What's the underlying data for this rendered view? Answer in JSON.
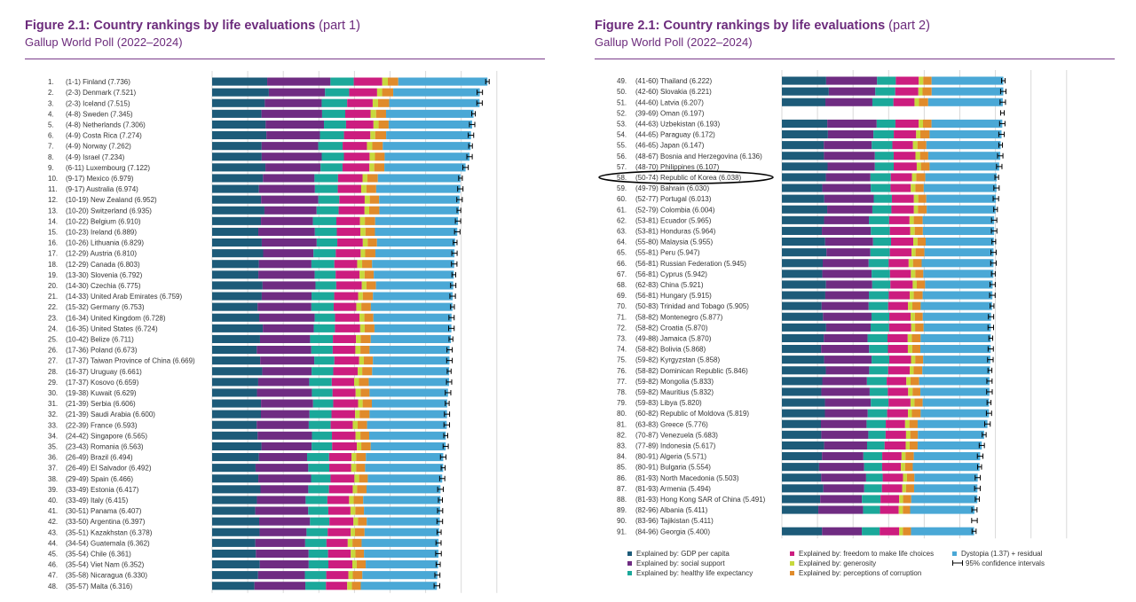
{
  "titles": {
    "left": {
      "figure": "Figure 2.1: Country rankings by life evaluations",
      "part": "(part 1)",
      "subtitle": "Gallup World Poll (2022–2024)"
    },
    "right": {
      "figure": "Figure 2.1: Country rankings by life evaluations",
      "part": "(part 2)",
      "subtitle": "Gallup World Poll (2022–2024)"
    }
  },
  "colors": {
    "gdp": "#1d5b79",
    "social": "#6f2c82",
    "health": "#1ba89a",
    "freedom": "#cc1d7f",
    "generosity": "#c7d93d",
    "corruption": "#e08b2b",
    "dystopia": "#4aa8d6",
    "ci": "#000000",
    "grid": "#d9d9d9"
  },
  "legend": {
    "gdp": "Explained by: GDP per capita",
    "social": "Explained by: social support",
    "health": "Explained by: healthy life expectancy",
    "freedom": "Explained by: freedom to make life choices",
    "generosity": "Explained by: generosity",
    "corruption": "Explained by: perceptions of corruption",
    "dystopia": "Dystopia (1.37) + residual",
    "ci": "95% confidence intervals"
  },
  "chart_data": [
    {
      "type": "bar",
      "stacked": true,
      "orientation": "horizontal",
      "title": "Figure 2.1: Country rankings by life evaluations (part 1)",
      "subtitle": "Gallup World Poll (2022–2024)",
      "series": [
        "GDP per capita",
        "Social support",
        "Healthy life expectancy",
        "Freedom to make life choices",
        "Generosity",
        "Perceptions of corruption",
        "Dystopia (1.37) + residual"
      ],
      "rows": [
        {
          "rank": "1.",
          "range": "(1-1)",
          "country": "Finland",
          "score": 7.736
        },
        {
          "rank": "2.",
          "range": "(2-3)",
          "country": "Denmark",
          "score": 7.521
        },
        {
          "rank": "3.",
          "range": "(2-3)",
          "country": "Iceland",
          "score": 7.515
        },
        {
          "rank": "4.",
          "range": "(4-8)",
          "country": "Sweden",
          "score": 7.345
        },
        {
          "rank": "5.",
          "range": "(4-8)",
          "country": "Netherlands",
          "score": 7.306
        },
        {
          "rank": "6.",
          "range": "(4-9)",
          "country": "Costa Rica",
          "score": 7.274
        },
        {
          "rank": "7.",
          "range": "(4-9)",
          "country": "Norway",
          "score": 7.262
        },
        {
          "rank": "8.",
          "range": "(4-9)",
          "country": "Israel",
          "score": 7.234
        },
        {
          "rank": "9.",
          "range": "(6-11)",
          "country": "Luxembourg",
          "score": 7.122
        },
        {
          "rank": "10.",
          "range": "(9-17)",
          "country": "Mexico",
          "score": 6.979
        },
        {
          "rank": "11.",
          "range": "(9-17)",
          "country": "Australia",
          "score": 6.974
        },
        {
          "rank": "12.",
          "range": "(10-19)",
          "country": "New Zealand",
          "score": 6.952
        },
        {
          "rank": "13.",
          "range": "(10-20)",
          "country": "Switzerland",
          "score": 6.935
        },
        {
          "rank": "14.",
          "range": "(10-22)",
          "country": "Belgium",
          "score": 6.91
        },
        {
          "rank": "15.",
          "range": "(10-23)",
          "country": "Ireland",
          "score": 6.889
        },
        {
          "rank": "16.",
          "range": "(10-26)",
          "country": "Lithuania",
          "score": 6.829
        },
        {
          "rank": "17.",
          "range": "(12-29)",
          "country": "Austria",
          "score": 6.81
        },
        {
          "rank": "18.",
          "range": "(12-29)",
          "country": "Canada",
          "score": 6.803
        },
        {
          "rank": "19.",
          "range": "(13-30)",
          "country": "Slovenia",
          "score": 6.792
        },
        {
          "rank": "20.",
          "range": "(14-30)",
          "country": "Czechia",
          "score": 6.775
        },
        {
          "rank": "21.",
          "range": "(14-33)",
          "country": "United Arab Emirates",
          "score": 6.759
        },
        {
          "rank": "22.",
          "range": "(15-32)",
          "country": "Germany",
          "score": 6.753
        },
        {
          "rank": "23.",
          "range": "(16-34)",
          "country": "United Kingdom",
          "score": 6.728
        },
        {
          "rank": "24.",
          "range": "(16-35)",
          "country": "United States",
          "score": 6.724
        },
        {
          "rank": "25.",
          "range": "(10-42)",
          "country": "Belize",
          "score": 6.711
        },
        {
          "rank": "26.",
          "range": "(17-36)",
          "country": "Poland",
          "score": 6.673
        },
        {
          "rank": "27.",
          "range": "(17-37)",
          "country": "Taiwan Province of China",
          "score": 6.669
        },
        {
          "rank": "28.",
          "range": "(16-37)",
          "country": "Uruguay",
          "score": 6.661
        },
        {
          "rank": "29.",
          "range": "(17-37)",
          "country": "Kosovo",
          "score": 6.659
        },
        {
          "rank": "30.",
          "range": "(19-38)",
          "country": "Kuwait",
          "score": 6.629
        },
        {
          "rank": "31.",
          "range": "(21-39)",
          "country": "Serbia",
          "score": 6.606
        },
        {
          "rank": "32.",
          "range": "(21-39)",
          "country": "Saudi Arabia",
          "score": 6.6
        },
        {
          "rank": "33.",
          "range": "(22-39)",
          "country": "France",
          "score": 6.593
        },
        {
          "rank": "34.",
          "range": "(24-42)",
          "country": "Singapore",
          "score": 6.565
        },
        {
          "rank": "35.",
          "range": "(23-43)",
          "country": "Romania",
          "score": 6.563
        },
        {
          "rank": "36.",
          "range": "(26-49)",
          "country": "Brazil",
          "score": 6.494
        },
        {
          "rank": "37.",
          "range": "(26-49)",
          "country": "El Salvador",
          "score": 6.492
        },
        {
          "rank": "38.",
          "range": "(29-49)",
          "country": "Spain",
          "score": 6.466
        },
        {
          "rank": "39.",
          "range": "(33-49)",
          "country": "Estonia",
          "score": 6.417
        },
        {
          "rank": "40.",
          "range": "(33-49)",
          "country": "Italy",
          "score": 6.415
        },
        {
          "rank": "41.",
          "range": "(30-51)",
          "country": "Panama",
          "score": 6.407
        },
        {
          "rank": "42.",
          "range": "(33-50)",
          "country": "Argentina",
          "score": 6.397
        },
        {
          "rank": "43.",
          "range": "(35-51)",
          "country": "Kazakhstan",
          "score": 6.378
        },
        {
          "rank": "44.",
          "range": "(34-54)",
          "country": "Guatemala",
          "score": 6.362
        },
        {
          "rank": "45.",
          "range": "(35-54)",
          "country": "Chile",
          "score": 6.361
        },
        {
          "rank": "46.",
          "range": "(35-54)",
          "country": "Viet Nam",
          "score": 6.352
        },
        {
          "rank": "47.",
          "range": "(35-58)",
          "country": "Nicaragua",
          "score": 6.33
        },
        {
          "rank": "48.",
          "range": "(35-57)",
          "country": "Malta",
          "score": 6.316
        }
      ]
    },
    {
      "type": "bar",
      "stacked": true,
      "orientation": "horizontal",
      "title": "Figure 2.1: Country rankings by life evaluations (part 2)",
      "subtitle": "Gallup World Poll (2022–2024)",
      "series": [
        "GDP per capita",
        "Social support",
        "Healthy life expectancy",
        "Freedom to make life choices",
        "Generosity",
        "Perceptions of corruption",
        "Dystopia (1.37) + residual"
      ],
      "highlight": "Republic of Korea",
      "rows": [
        {
          "rank": "49.",
          "range": "(41-60)",
          "country": "Thailand",
          "score": 6.222
        },
        {
          "rank": "50.",
          "range": "(42-60)",
          "country": "Slovakia",
          "score": 6.221
        },
        {
          "rank": "51.",
          "range": "(44-60)",
          "country": "Latvia",
          "score": 6.207
        },
        {
          "rank": "52.",
          "range": "(39-69)",
          "country": "Oman",
          "score": 6.197,
          "no_components": true
        },
        {
          "rank": "53.",
          "range": "(44-63)",
          "country": "Uzbekistan",
          "score": 6.193
        },
        {
          "rank": "54.",
          "range": "(44-65)",
          "country": "Paraguay",
          "score": 6.172
        },
        {
          "rank": "55.",
          "range": "(46-65)",
          "country": "Japan",
          "score": 6.147
        },
        {
          "rank": "56.",
          "range": "(48-67)",
          "country": "Bosnia and Herzegovina",
          "score": 6.136
        },
        {
          "rank": "57.",
          "range": "(48-70)",
          "country": "Philippines",
          "score": 6.107
        },
        {
          "rank": "58.",
          "range": "(50-74)",
          "country": "Republic of Korea",
          "score": 6.038
        },
        {
          "rank": "59.",
          "range": "(49-79)",
          "country": "Bahrain",
          "score": 6.03
        },
        {
          "rank": "60.",
          "range": "(52-77)",
          "country": "Portugal",
          "score": 6.013
        },
        {
          "rank": "61.",
          "range": "(52-79)",
          "country": "Colombia",
          "score": 6.004
        },
        {
          "rank": "62.",
          "range": "(53-81)",
          "country": "Ecuador",
          "score": 5.965
        },
        {
          "rank": "63.",
          "range": "(53-81)",
          "country": "Honduras",
          "score": 5.964
        },
        {
          "rank": "64.",
          "range": "(55-80)",
          "country": "Malaysia",
          "score": 5.955
        },
        {
          "rank": "65.",
          "range": "(55-81)",
          "country": "Peru",
          "score": 5.947
        },
        {
          "rank": "66.",
          "range": "(56-81)",
          "country": "Russian Federation",
          "score": 5.945
        },
        {
          "rank": "67.",
          "range": "(56-81)",
          "country": "Cyprus",
          "score": 5.942
        },
        {
          "rank": "68.",
          "range": "(62-83)",
          "country": "China",
          "score": 5.921
        },
        {
          "rank": "69.",
          "range": "(56-81)",
          "country": "Hungary",
          "score": 5.915
        },
        {
          "rank": "70.",
          "range": "(50-83)",
          "country": "Trinidad and Tobago",
          "score": 5.905
        },
        {
          "rank": "71.",
          "range": "(58-82)",
          "country": "Montenegro",
          "score": 5.877
        },
        {
          "rank": "72.",
          "range": "(58-82)",
          "country": "Croatia",
          "score": 5.87
        },
        {
          "rank": "73.",
          "range": "(49-88)",
          "country": "Jamaica",
          "score": 5.87
        },
        {
          "rank": "74.",
          "range": "(58-82)",
          "country": "Bolivia",
          "score": 5.868
        },
        {
          "rank": "75.",
          "range": "(59-82)",
          "country": "Kyrgyzstan",
          "score": 5.858
        },
        {
          "rank": "76.",
          "range": "(58-82)",
          "country": "Dominican Republic",
          "score": 5.846
        },
        {
          "rank": "77.",
          "range": "(59-82)",
          "country": "Mongolia",
          "score": 5.833
        },
        {
          "rank": "78.",
          "range": "(59-82)",
          "country": "Mauritius",
          "score": 5.832
        },
        {
          "rank": "79.",
          "range": "(59-83)",
          "country": "Libya",
          "score": 5.82
        },
        {
          "rank": "80.",
          "range": "(60-82)",
          "country": "Republic of Moldova",
          "score": 5.819
        },
        {
          "rank": "81.",
          "range": "(63-83)",
          "country": "Greece",
          "score": 5.776
        },
        {
          "rank": "82.",
          "range": "(70-87)",
          "country": "Venezuela",
          "score": 5.683
        },
        {
          "rank": "83.",
          "range": "(77-89)",
          "country": "Indonesia",
          "score": 5.617
        },
        {
          "rank": "84.",
          "range": "(80-91)",
          "country": "Algeria",
          "score": 5.571
        },
        {
          "rank": "85.",
          "range": "(80-91)",
          "country": "Bulgaria",
          "score": 5.554
        },
        {
          "rank": "86.",
          "range": "(81-93)",
          "country": "North Macedonia",
          "score": 5.503
        },
        {
          "rank": "87.",
          "range": "(81-93)",
          "country": "Armenia",
          "score": 5.494
        },
        {
          "rank": "88.",
          "range": "(81-93)",
          "country": "Hong Kong SAR of China",
          "score": 5.491
        },
        {
          "rank": "89.",
          "range": "(82-96)",
          "country": "Albania",
          "score": 5.411
        },
        {
          "rank": "90.",
          "range": "(83-96)",
          "country": "Tajikistan",
          "score": 5.411,
          "no_components": true
        },
        {
          "rank": "91.",
          "range": "(84-96)",
          "country": "Georgia",
          "score": 5.4
        }
      ]
    }
  ]
}
